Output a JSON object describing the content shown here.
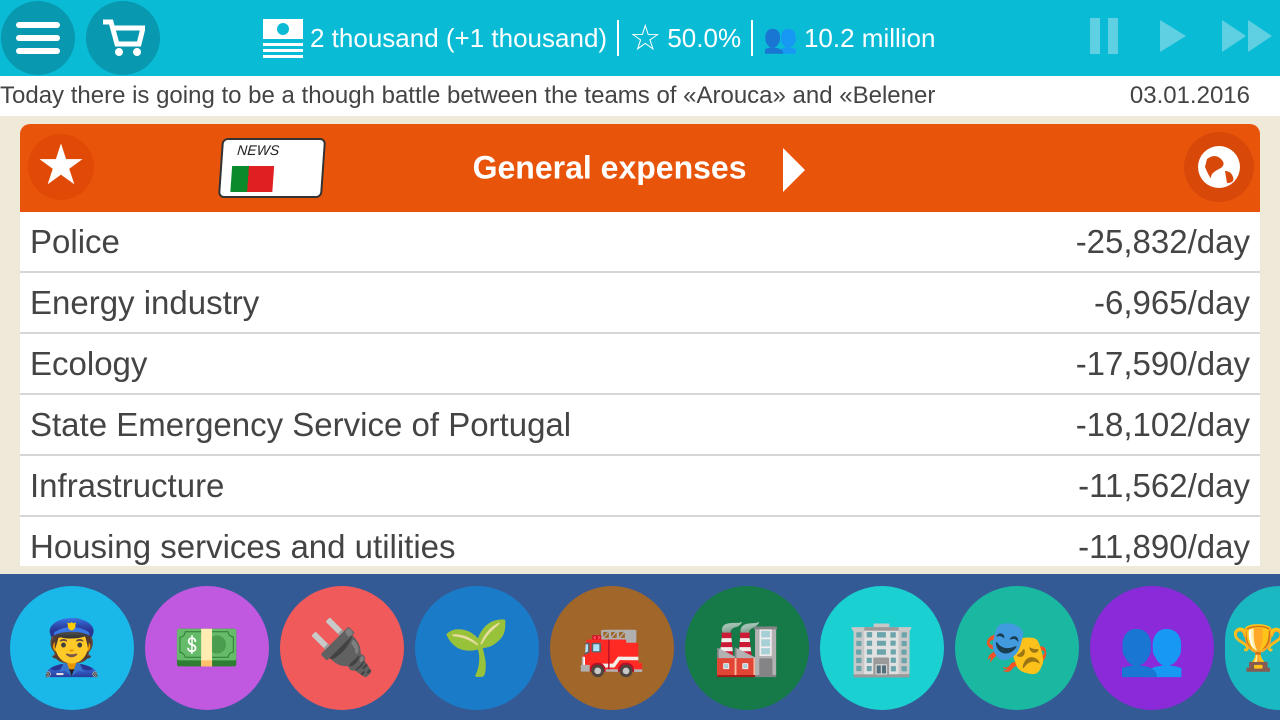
{
  "topbar": {
    "money": "2 thousand (+1 thousand)",
    "rating": "50.0%",
    "population": "10.2 million"
  },
  "ticker": {
    "text": "Today there is going to be a though battle between the teams of «Arouca» and «Belener",
    "date": "03.01.2016"
  },
  "panel": {
    "title": "General expenses",
    "rows": [
      {
        "label": "Police",
        "value": "-25,832/day"
      },
      {
        "label": "Energy industry",
        "value": "-6,965/day"
      },
      {
        "label": "Ecology",
        "value": "-17,590/day"
      },
      {
        "label": "State Emergency Service of Portugal",
        "value": "-18,102/day"
      },
      {
        "label": "Infrastructure",
        "value": "-11,562/day"
      },
      {
        "label": "Housing services and utilities",
        "value": "-11,890/day"
      }
    ],
    "news_label": "NEWS"
  },
  "categories": [
    {
      "icon": "police-icon",
      "color": "#1ab8e8",
      "glyph": "👮"
    },
    {
      "icon": "finance-icon",
      "color": "#c058e0",
      "glyph": "💵"
    },
    {
      "icon": "energy-plug-icon",
      "color": "#f05a5a",
      "glyph": "🔌"
    },
    {
      "icon": "ecology-sprout-icon",
      "color": "#1a7cc8",
      "glyph": "🌱"
    },
    {
      "icon": "fire-station-icon",
      "color": "#a0662a",
      "glyph": "🚒"
    },
    {
      "icon": "factory-icon",
      "color": "#157a48",
      "glyph": "🏭"
    },
    {
      "icon": "housing-building-icon",
      "color": "#1ad0d0",
      "glyph": "🏢"
    },
    {
      "icon": "theater-icon",
      "color": "#1ab8a0",
      "glyph": "🎭"
    },
    {
      "icon": "people-icon",
      "color": "#8a2ad8",
      "glyph": "👥"
    },
    {
      "icon": "trophy-icon",
      "color": "#1ab8c0",
      "glyph": "🏆"
    }
  ]
}
